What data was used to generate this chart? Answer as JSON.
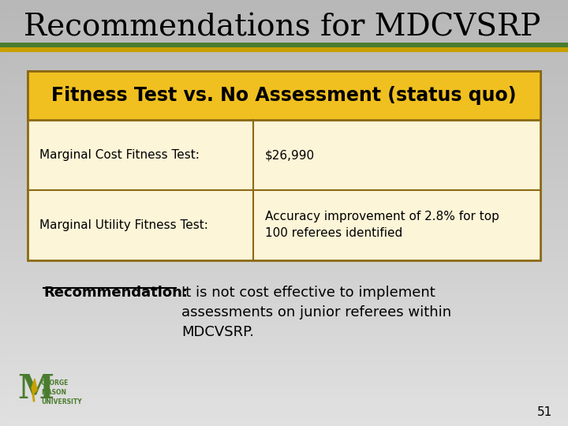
{
  "title": "Recommendations for MDCVSRP",
  "title_color": "#000000",
  "title_fontsize": 28,
  "header_text": "Fitness Test vs. No Assessment (status quo)",
  "header_bg": "#f0c020",
  "header_border": "#8b6914",
  "header_fontsize": 17,
  "table_bg": "#fdf5d8",
  "table_border": "#8b6914",
  "row1_label": "Marginal Cost Fitness Test:",
  "row1_value": "$26,990",
  "row2_label": "Marginal Utility Fitness Test:",
  "row2_value": "Accuracy improvement of 2.8% for top\n100 referees identified",
  "rec_label": "Recommendation:",
  "rec_text": "It is not cost effective to implement\nassessments on junior referees within\nMDCVSRP.",
  "page_number": "51",
  "title_bar_green": "#4a7c2f",
  "title_bar_gold": "#c8a000"
}
